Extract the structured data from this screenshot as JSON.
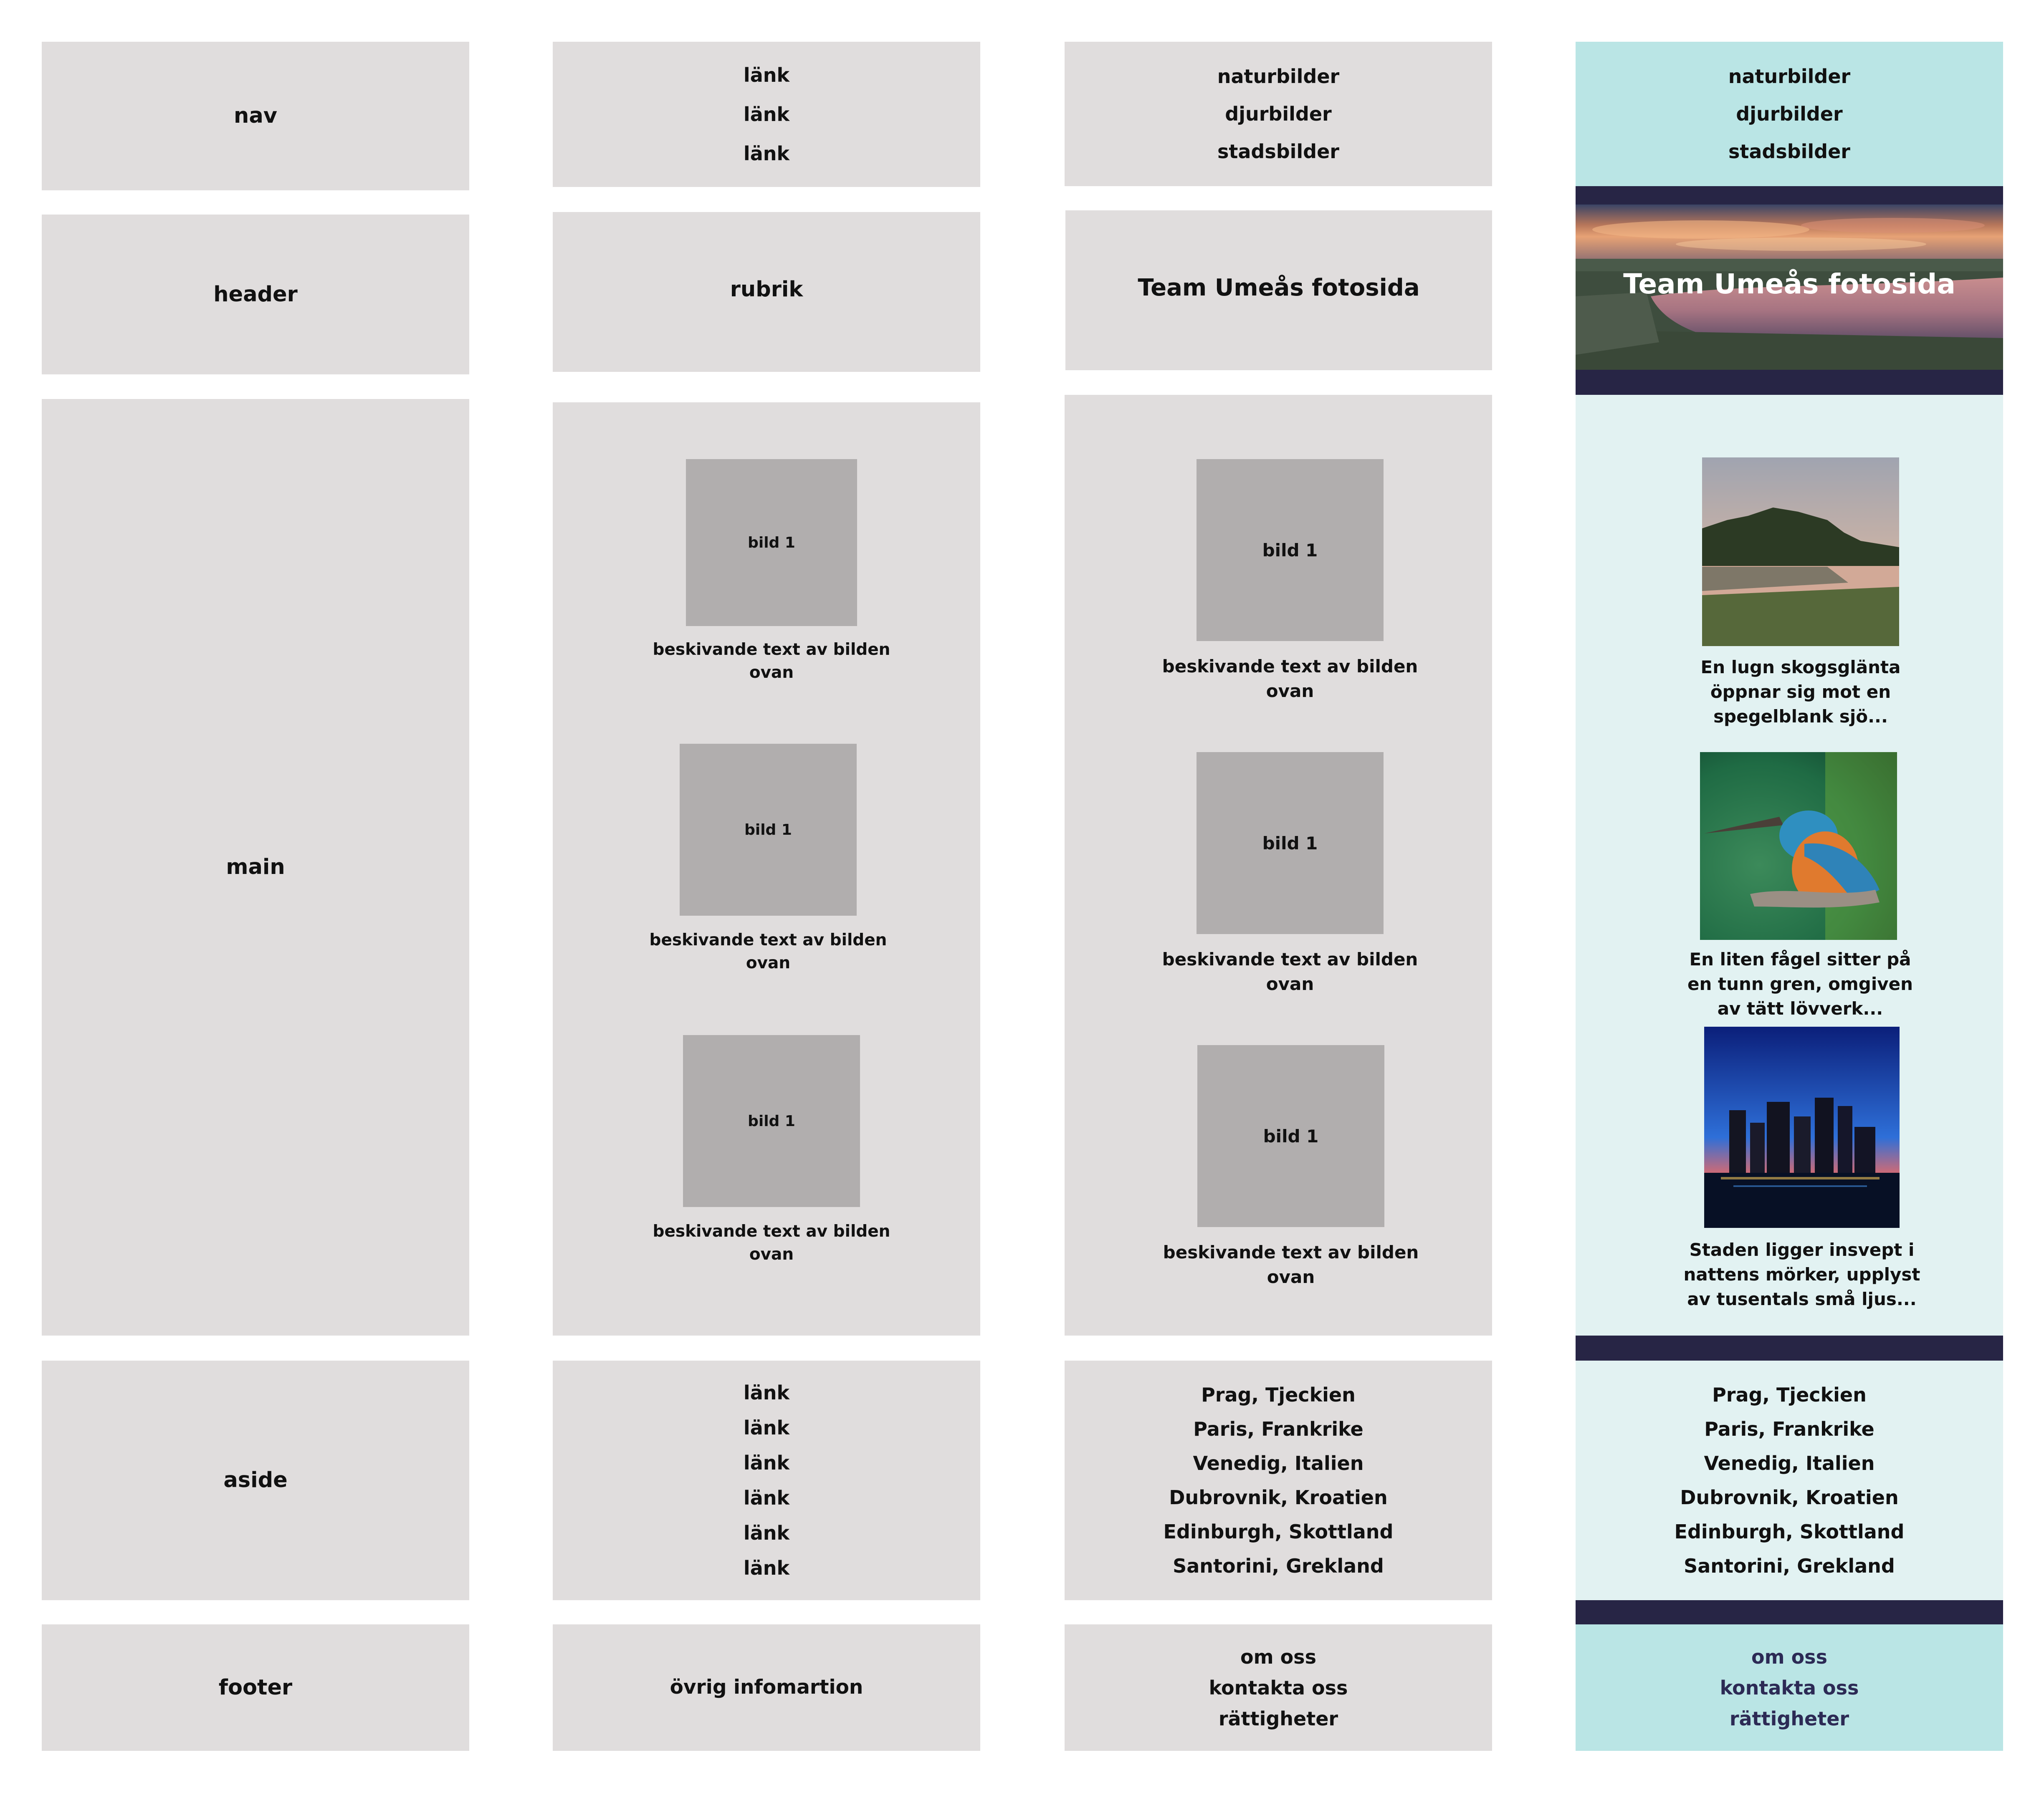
{
  "col1": {
    "nav": "nav",
    "header": "header",
    "main": "main",
    "aside": "aside",
    "footer": "footer"
  },
  "col2": {
    "nav_links": [
      "länk",
      "länk",
      "länk"
    ],
    "header": "rubrik",
    "images": [
      {
        "label": "bild 1",
        "caption": "beskivande text av bilden ovan"
      },
      {
        "label": "bild 1",
        "caption": "beskivande text av bilden ovan"
      },
      {
        "label": "bild 1",
        "caption": "beskivande text av bilden ovan"
      }
    ],
    "aside_links": [
      "länk",
      "länk",
      "länk",
      "länk",
      "länk",
      "länk"
    ],
    "footer": "övrig infomartion"
  },
  "col3": {
    "nav_links": [
      "naturbilder",
      "djurbilder",
      "stadsbilder"
    ],
    "header": "Team Umeås fotosida",
    "images": [
      {
        "label": "bild 1",
        "caption": "beskivande text av bilden ovan"
      },
      {
        "label": "bild 1",
        "caption": "beskivande text av bilden ovan"
      },
      {
        "label": "bild 1",
        "caption": "beskivande text av bilden ovan"
      }
    ],
    "aside_links": [
      "Prag, Tjeckien",
      "Paris, Frankrike",
      "Venedig, Italien",
      "Dubrovnik, Kroatien",
      "Edinburgh, Skottland",
      "Santorini, Grekland"
    ],
    "footer_links": [
      "om oss",
      "kontakta oss",
      "rättigheter"
    ]
  },
  "col4": {
    "nav_links": [
      "naturbilder",
      "djurbilder",
      "stadsbilder"
    ],
    "header": "Team Umeås fotosida",
    "images": [
      {
        "caption": "En lugn skogsglänta öppnar sig mot en spegelblank sjö..."
      },
      {
        "caption": "En liten fågel sitter på en tunn gren, omgiven av tätt lövverk..."
      },
      {
        "caption": "Staden ligger insvept i nattens mörker, upplyst av tusentals små ljus..."
      }
    ],
    "aside_links": [
      "Prag, Tjeckien",
      "Paris, Frankrike",
      "Venedig, Italien",
      "Dubrovnik, Kroatien",
      "Edinburgh, Skottland",
      "Santorini, Grekland"
    ],
    "footer_links": [
      "om oss",
      "kontakta oss",
      "rättigheter"
    ]
  },
  "colors": {
    "grey_box": "#e0dddd",
    "image_placeholder": "#b1aeae",
    "teal": "#bae5e5",
    "light_teal": "#e2f2f2",
    "dark_band": "#272545"
  }
}
